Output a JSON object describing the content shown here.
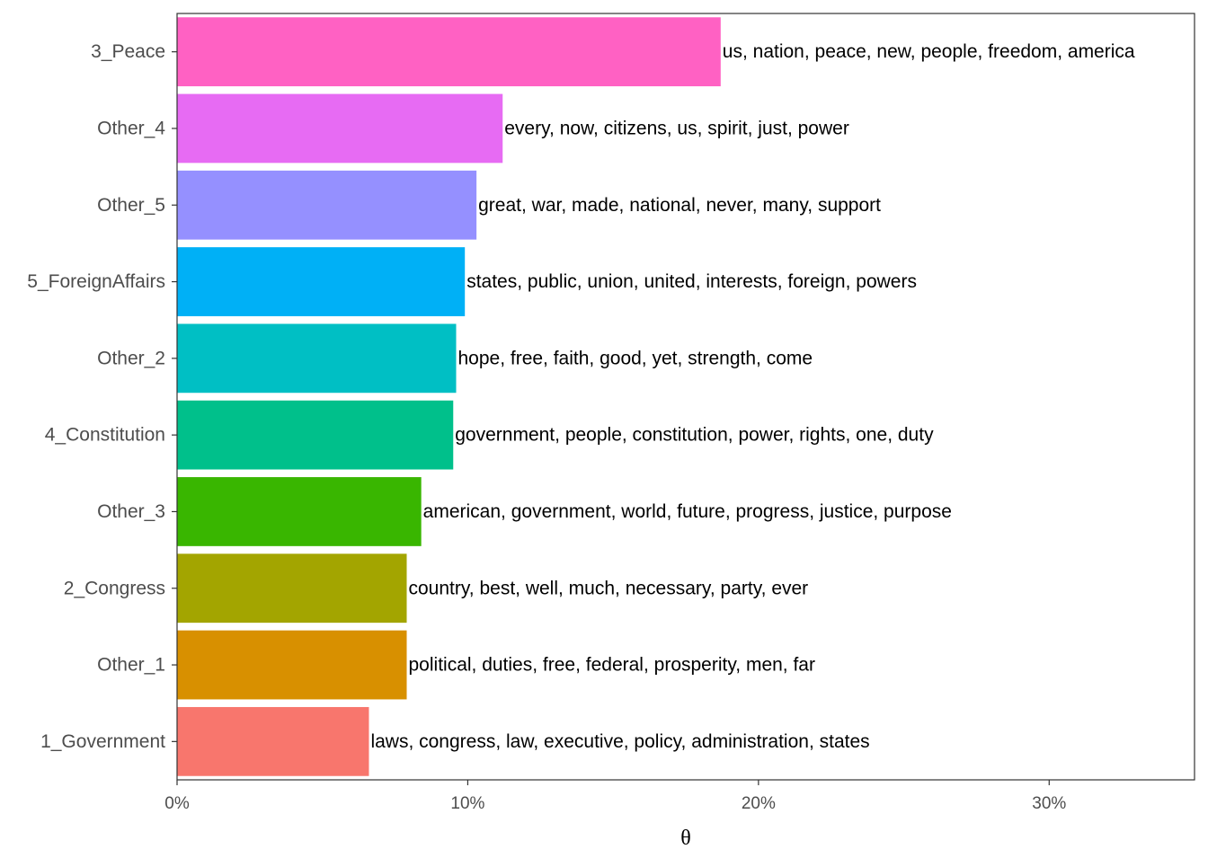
{
  "chart_data": {
    "type": "bar",
    "orientation": "horizontal",
    "xlabel": "θ",
    "ylabel": "",
    "xlim": [
      0,
      35
    ],
    "x_ticks": [
      {
        "value": 0,
        "label": "0%"
      },
      {
        "value": 10,
        "label": "10%"
      },
      {
        "value": 20,
        "label": "20%"
      },
      {
        "value": 30,
        "label": "30%"
      }
    ],
    "grid": false,
    "legend": "none",
    "categories": [
      "3_Peace",
      "Other_4",
      "Other_5",
      "5_ForeignAffairs",
      "Other_2",
      "4_Constitution",
      "Other_3",
      "2_Congress",
      "Other_1",
      "1_Government"
    ],
    "values": [
      18.7,
      11.2,
      10.3,
      9.9,
      9.6,
      9.5,
      8.4,
      7.9,
      7.9,
      6.6
    ],
    "labels": [
      "us, nation, peace, new, people, freedom, america",
      "every, now, citizens, us, spirit, just, power",
      "great, war, made, national, never, many, support",
      "states, public, union, united, interests, foreign, powers",
      "hope, free, faith, good, yet, strength, come",
      "government, people, constitution, power, rights, one, duty",
      "american, government, world, future, progress, justice, purpose",
      "country, best, well, much, necessary, party, ever",
      "political, duties, free, federal, prosperity, men, far",
      "laws, congress, law, executive, policy, administration, states"
    ],
    "colors": [
      "#FF61C3",
      "#E76BF3",
      "#9590FF",
      "#00B0F6",
      "#00BFC4",
      "#00C08B",
      "#39B600",
      "#A3A500",
      "#D89000",
      "#F8766D"
    ]
  }
}
